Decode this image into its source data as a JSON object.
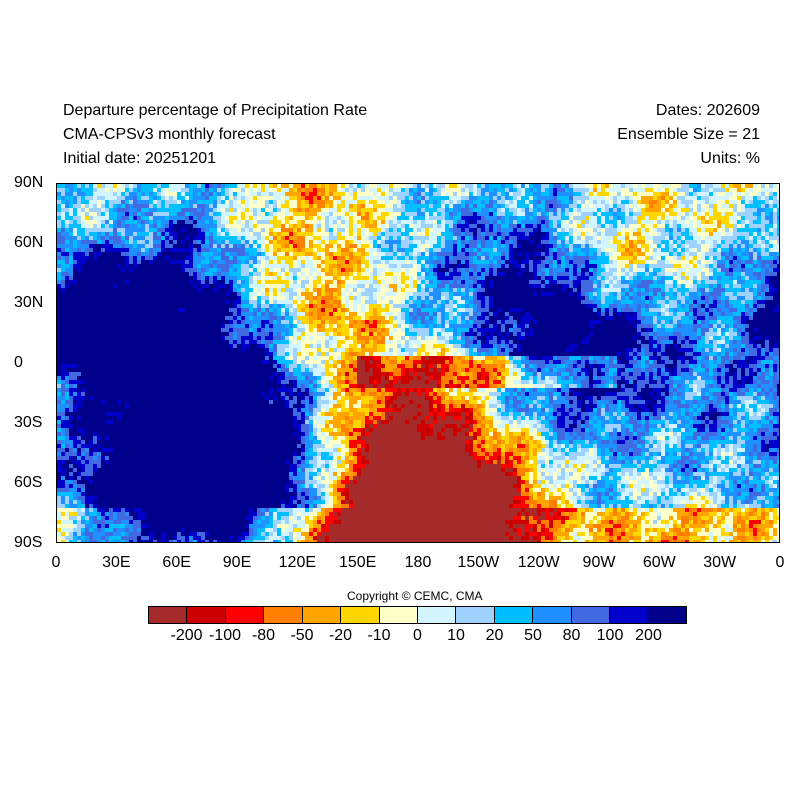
{
  "header": {
    "title": "Departure percentage of Precipitation Rate",
    "subtitle": "CMA-CPSv3 monthly forecast",
    "initial_date": "Initial date: 20251201",
    "dates": "Dates: 202609",
    "ensemble": "Ensemble Size = 21",
    "units": "Units: %"
  },
  "map": {
    "lat_ticks": [
      "90N",
      "60N",
      "30N",
      "0",
      "30S",
      "60S",
      "90S"
    ],
    "lon_ticks": [
      "0",
      "30E",
      "60E",
      "90E",
      "120E",
      "150E",
      "180",
      "150W",
      "120W",
      "90W",
      "60W",
      "30W",
      "0"
    ]
  },
  "copyright": "Copyright © CEMC, CMA",
  "colorbar": {
    "colors": [
      "#a52a2a",
      "#cd0000",
      "#ff0000",
      "#ff7f00",
      "#ffa500",
      "#ffd700",
      "#ffffc8",
      "#d2f5ff",
      "#a0d2ff",
      "#00bfff",
      "#1e90ff",
      "#4169e1",
      "#0000cd",
      "#00008b"
    ],
    "labels": [
      "-200",
      "-100",
      "-80",
      "-50",
      "-20",
      "-10",
      "0",
      "10",
      "20",
      "50",
      "80",
      "100",
      "200"
    ]
  }
}
